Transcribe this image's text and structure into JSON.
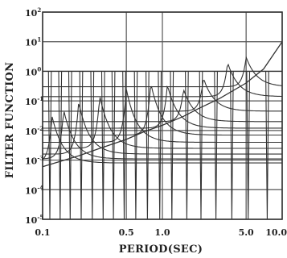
{
  "chart_data": {
    "type": "line",
    "title": "",
    "xlabel": "PERIOD(SEC)",
    "ylabel": "FILTER FUNCTION",
    "xscale": "log",
    "yscale": "log",
    "xlim": [
      0.1,
      10.0
    ],
    "ylim": [
      1e-05,
      100
    ],
    "grid": true,
    "x_tick_values": [
      0.1,
      0.5,
      1.0,
      5.0,
      10.0
    ],
    "x_tick_labels": [
      "0.1",
      "0.5",
      "1.0",
      "5.0",
      "10.0"
    ],
    "x_grid_values": [
      0.1,
      0.5,
      1.0,
      5.0,
      10.0
    ],
    "y_tick_values": [
      1e-05,
      0.0001,
      0.001,
      0.01,
      0.1,
      1,
      10,
      100
    ],
    "y_tick_labels": [
      {
        "base": "10",
        "exp": "-5"
      },
      {
        "base": "10",
        "exp": "-4"
      },
      {
        "base": "10",
        "exp": "-3"
      },
      {
        "base": "10",
        "exp": "-2"
      },
      {
        "base": "10",
        "exp": "-1"
      },
      {
        "base": "10",
        "exp": "0"
      },
      {
        "base": "10",
        "exp": "1"
      },
      {
        "base": "10",
        "exp": "2"
      }
    ],
    "passband_level": 1.0,
    "band_centers": [
      0.115,
      0.14,
      0.17,
      0.21,
      0.26,
      0.32,
      0.39,
      0.48,
      0.6,
      0.75,
      0.95,
      1.2,
      1.6,
      2.1,
      2.8,
      3.8,
      5.2,
      7.5
    ],
    "peaked_filters": [
      {
        "center": 0.12,
        "peak": 0.03,
        "floor": 0.0008
      },
      {
        "center": 0.15,
        "peak": 0.05,
        "floor": 0.0011
      },
      {
        "center": 0.2,
        "peak": 0.09,
        "floor": 0.0016
      },
      {
        "center": 0.3,
        "peak": 0.15,
        "floor": 0.0025
      },
      {
        "center": 0.5,
        "peak": 0.25,
        "floor": 0.004
      },
      {
        "center": 0.8,
        "peak": 0.4,
        "floor": 0.007
      },
      {
        "center": 1.1,
        "peak": 0.35,
        "floor": 0.012
      },
      {
        "center": 1.5,
        "peak": 0.25,
        "floor": 0.02
      },
      {
        "center": 2.2,
        "peak": 0.6,
        "floor": 0.045
      },
      {
        "center": 3.5,
        "peak": 2.0,
        "floor": 0.14
      },
      {
        "center": 5.0,
        "peak": 3.0,
        "floor": 0.3
      }
    ],
    "rising_curve": {
      "x": [
        0.1,
        0.2,
        0.3,
        0.5,
        0.7,
        1.0,
        1.5,
        2.0,
        3.0,
        5.0,
        7.0,
        10.0
      ],
      "y": [
        0.0006,
        0.0014,
        0.0025,
        0.005,
        0.009,
        0.015,
        0.03,
        0.055,
        0.12,
        0.4,
        1.2,
        10.0
      ]
    },
    "colors": {
      "line": "#333333",
      "grid": "#555555",
      "background": "#ffffff"
    }
  }
}
